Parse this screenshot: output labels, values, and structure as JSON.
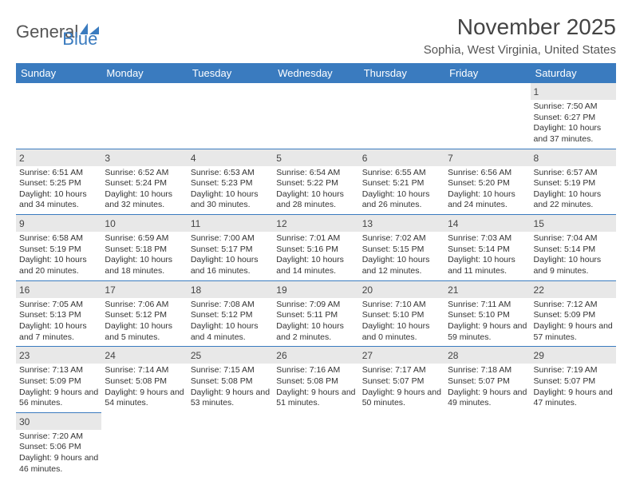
{
  "logo": {
    "text1": "General",
    "text2": "Blue"
  },
  "title": "November 2025",
  "location": "Sophia, West Virginia, United States",
  "colors": {
    "header_bg": "#3a7bbf",
    "header_fg": "#ffffff",
    "daynum_bg": "#e8e8e8",
    "row_border": "#3a7bbf"
  },
  "dayNames": [
    "Sunday",
    "Monday",
    "Tuesday",
    "Wednesday",
    "Thursday",
    "Friday",
    "Saturday"
  ],
  "weeks": [
    [
      null,
      null,
      null,
      null,
      null,
      null,
      {
        "n": "1",
        "sr": "Sunrise: 7:50 AM",
        "ss": "Sunset: 6:27 PM",
        "dl": "Daylight: 10 hours and 37 minutes."
      }
    ],
    [
      {
        "n": "2",
        "sr": "Sunrise: 6:51 AM",
        "ss": "Sunset: 5:25 PM",
        "dl": "Daylight: 10 hours and 34 minutes."
      },
      {
        "n": "3",
        "sr": "Sunrise: 6:52 AM",
        "ss": "Sunset: 5:24 PM",
        "dl": "Daylight: 10 hours and 32 minutes."
      },
      {
        "n": "4",
        "sr": "Sunrise: 6:53 AM",
        "ss": "Sunset: 5:23 PM",
        "dl": "Daylight: 10 hours and 30 minutes."
      },
      {
        "n": "5",
        "sr": "Sunrise: 6:54 AM",
        "ss": "Sunset: 5:22 PM",
        "dl": "Daylight: 10 hours and 28 minutes."
      },
      {
        "n": "6",
        "sr": "Sunrise: 6:55 AM",
        "ss": "Sunset: 5:21 PM",
        "dl": "Daylight: 10 hours and 26 minutes."
      },
      {
        "n": "7",
        "sr": "Sunrise: 6:56 AM",
        "ss": "Sunset: 5:20 PM",
        "dl": "Daylight: 10 hours and 24 minutes."
      },
      {
        "n": "8",
        "sr": "Sunrise: 6:57 AM",
        "ss": "Sunset: 5:19 PM",
        "dl": "Daylight: 10 hours and 22 minutes."
      }
    ],
    [
      {
        "n": "9",
        "sr": "Sunrise: 6:58 AM",
        "ss": "Sunset: 5:19 PM",
        "dl": "Daylight: 10 hours and 20 minutes."
      },
      {
        "n": "10",
        "sr": "Sunrise: 6:59 AM",
        "ss": "Sunset: 5:18 PM",
        "dl": "Daylight: 10 hours and 18 minutes."
      },
      {
        "n": "11",
        "sr": "Sunrise: 7:00 AM",
        "ss": "Sunset: 5:17 PM",
        "dl": "Daylight: 10 hours and 16 minutes."
      },
      {
        "n": "12",
        "sr": "Sunrise: 7:01 AM",
        "ss": "Sunset: 5:16 PM",
        "dl": "Daylight: 10 hours and 14 minutes."
      },
      {
        "n": "13",
        "sr": "Sunrise: 7:02 AM",
        "ss": "Sunset: 5:15 PM",
        "dl": "Daylight: 10 hours and 12 minutes."
      },
      {
        "n": "14",
        "sr": "Sunrise: 7:03 AM",
        "ss": "Sunset: 5:14 PM",
        "dl": "Daylight: 10 hours and 11 minutes."
      },
      {
        "n": "15",
        "sr": "Sunrise: 7:04 AM",
        "ss": "Sunset: 5:14 PM",
        "dl": "Daylight: 10 hours and 9 minutes."
      }
    ],
    [
      {
        "n": "16",
        "sr": "Sunrise: 7:05 AM",
        "ss": "Sunset: 5:13 PM",
        "dl": "Daylight: 10 hours and 7 minutes."
      },
      {
        "n": "17",
        "sr": "Sunrise: 7:06 AM",
        "ss": "Sunset: 5:12 PM",
        "dl": "Daylight: 10 hours and 5 minutes."
      },
      {
        "n": "18",
        "sr": "Sunrise: 7:08 AM",
        "ss": "Sunset: 5:12 PM",
        "dl": "Daylight: 10 hours and 4 minutes."
      },
      {
        "n": "19",
        "sr": "Sunrise: 7:09 AM",
        "ss": "Sunset: 5:11 PM",
        "dl": "Daylight: 10 hours and 2 minutes."
      },
      {
        "n": "20",
        "sr": "Sunrise: 7:10 AM",
        "ss": "Sunset: 5:10 PM",
        "dl": "Daylight: 10 hours and 0 minutes."
      },
      {
        "n": "21",
        "sr": "Sunrise: 7:11 AM",
        "ss": "Sunset: 5:10 PM",
        "dl": "Daylight: 9 hours and 59 minutes."
      },
      {
        "n": "22",
        "sr": "Sunrise: 7:12 AM",
        "ss": "Sunset: 5:09 PM",
        "dl": "Daylight: 9 hours and 57 minutes."
      }
    ],
    [
      {
        "n": "23",
        "sr": "Sunrise: 7:13 AM",
        "ss": "Sunset: 5:09 PM",
        "dl": "Daylight: 9 hours and 56 minutes."
      },
      {
        "n": "24",
        "sr": "Sunrise: 7:14 AM",
        "ss": "Sunset: 5:08 PM",
        "dl": "Daylight: 9 hours and 54 minutes."
      },
      {
        "n": "25",
        "sr": "Sunrise: 7:15 AM",
        "ss": "Sunset: 5:08 PM",
        "dl": "Daylight: 9 hours and 53 minutes."
      },
      {
        "n": "26",
        "sr": "Sunrise: 7:16 AM",
        "ss": "Sunset: 5:08 PM",
        "dl": "Daylight: 9 hours and 51 minutes."
      },
      {
        "n": "27",
        "sr": "Sunrise: 7:17 AM",
        "ss": "Sunset: 5:07 PM",
        "dl": "Daylight: 9 hours and 50 minutes."
      },
      {
        "n": "28",
        "sr": "Sunrise: 7:18 AM",
        "ss": "Sunset: 5:07 PM",
        "dl": "Daylight: 9 hours and 49 minutes."
      },
      {
        "n": "29",
        "sr": "Sunrise: 7:19 AM",
        "ss": "Sunset: 5:07 PM",
        "dl": "Daylight: 9 hours and 47 minutes."
      }
    ],
    [
      {
        "n": "30",
        "sr": "Sunrise: 7:20 AM",
        "ss": "Sunset: 5:06 PM",
        "dl": "Daylight: 9 hours and 46 minutes."
      },
      null,
      null,
      null,
      null,
      null,
      null
    ]
  ]
}
